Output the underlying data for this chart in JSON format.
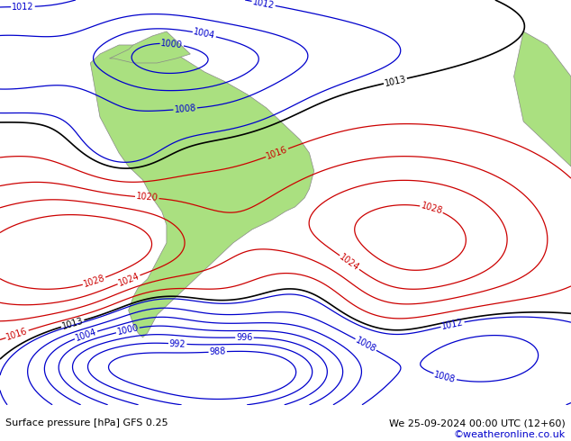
{
  "title_left": "Surface pressure [hPa] GFS 0.25",
  "title_right": "We 25-09-2024 00:00 UTC (12+60)",
  "copyright": "©weatheronline.co.uk",
  "land_color": "#aae080",
  "ocean_color": "#e8e8e8",
  "mountain_color": "#b0b0a0",
  "blue_contour_color": "#0000cc",
  "red_contour_color": "#cc0000",
  "black_contour_color": "#000000",
  "footer_bg": "#ffffff",
  "copyright_color": "#0000cc",
  "text_color": "#000000",
  "contour_lw": 0.9,
  "label_fontsize": 7
}
